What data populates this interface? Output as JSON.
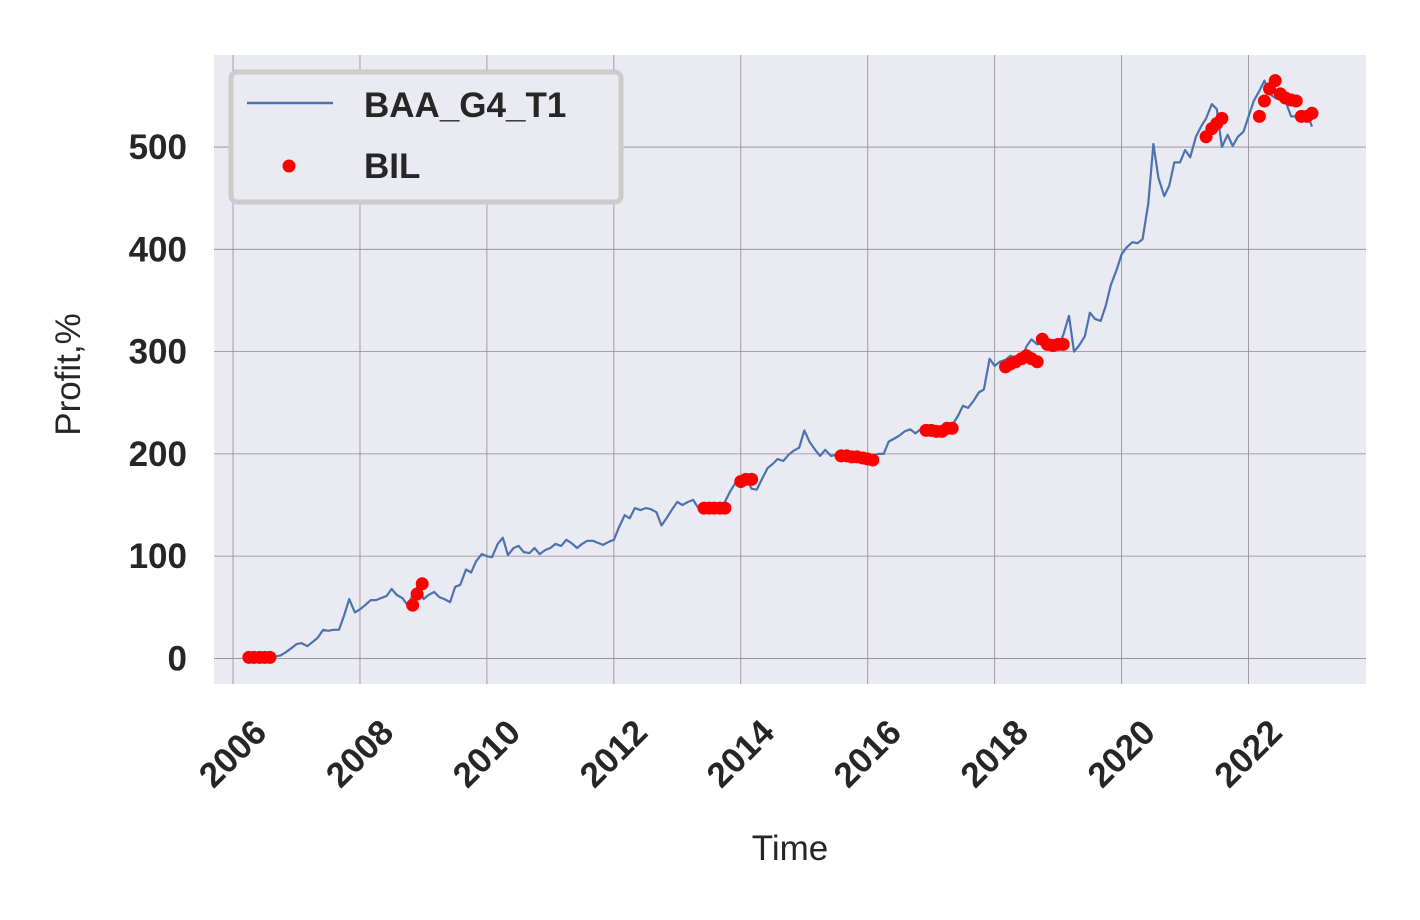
{
  "chart_data": {
    "type": "line",
    "title": "",
    "xlabel": "Time",
    "ylabel": "Profit,%",
    "xlim": [
      2005.7,
      2023.85
    ],
    "ylim": [
      -25,
      590
    ],
    "x_ticks": [
      2006,
      2008,
      2010,
      2012,
      2014,
      2016,
      2018,
      2020,
      2022
    ],
    "x_tick_labels": [
      "2006",
      "2008",
      "2010",
      "2012",
      "2014",
      "2016",
      "2018",
      "2020",
      "2022"
    ],
    "y_ticks": [
      0,
      100,
      200,
      300,
      400,
      500
    ],
    "y_tick_labels": [
      "0",
      "100",
      "200",
      "300",
      "400",
      "500"
    ],
    "grid": true,
    "legend": "top-left",
    "colors": {
      "line": "#4c72b0",
      "points": "#ff0000",
      "background": "#eaeaf2",
      "grid": "#8c8c8c"
    },
    "series": [
      {
        "name": "BAA_G4_T1",
        "kind": "line",
        "x": [
          2006.17,
          2006.25,
          2006.33,
          2006.42,
          2006.5,
          2006.58,
          2006.67,
          2006.75,
          2006.83,
          2006.92,
          2007.0,
          2007.08,
          2007.17,
          2007.25,
          2007.33,
          2007.42,
          2007.5,
          2007.58,
          2007.67,
          2007.75,
          2007.83,
          2007.92,
          2008.0,
          2008.08,
          2008.17,
          2008.25,
          2008.33,
          2008.42,
          2008.5,
          2008.58,
          2008.67,
          2008.75,
          2008.83,
          2008.92,
          2009.0,
          2009.08,
          2009.17,
          2009.25,
          2009.33,
          2009.42,
          2009.5,
          2009.58,
          2009.67,
          2009.75,
          2009.83,
          2009.92,
          2010.0,
          2010.08,
          2010.17,
          2010.25,
          2010.33,
          2010.42,
          2010.5,
          2010.58,
          2010.67,
          2010.75,
          2010.83,
          2010.92,
          2011.0,
          2011.08,
          2011.17,
          2011.25,
          2011.33,
          2011.42,
          2011.5,
          2011.58,
          2011.67,
          2011.75,
          2011.83,
          2011.92,
          2012.0,
          2012.08,
          2012.17,
          2012.25,
          2012.33,
          2012.42,
          2012.5,
          2012.58,
          2012.67,
          2012.75,
          2012.83,
          2012.92,
          2013.0,
          2013.08,
          2013.17,
          2013.25,
          2013.33,
          2013.42,
          2013.5,
          2013.58,
          2013.67,
          2013.75,
          2013.83,
          2013.92,
          2014.0,
          2014.08,
          2014.17,
          2014.25,
          2014.33,
          2014.42,
          2014.5,
          2014.58,
          2014.67,
          2014.75,
          2014.83,
          2014.92,
          2015.0,
          2015.08,
          2015.17,
          2015.25,
          2015.33,
          2015.42,
          2015.5,
          2015.58,
          2015.67,
          2015.75,
          2015.83,
          2015.92,
          2016.0,
          2016.08,
          2016.17,
          2016.25,
          2016.33,
          2016.42,
          2016.5,
          2016.58,
          2016.67,
          2016.75,
          2016.83,
          2016.92,
          2017.0,
          2017.08,
          2017.17,
          2017.25,
          2017.33,
          2017.42,
          2017.5,
          2017.58,
          2017.67,
          2017.75,
          2017.83,
          2017.92,
          2018.0,
          2018.08,
          2018.17,
          2018.25,
          2018.33,
          2018.42,
          2018.5,
          2018.58,
          2018.67,
          2018.75,
          2018.83,
          2018.92,
          2019.0,
          2019.08,
          2019.17,
          2019.25,
          2019.33,
          2019.42,
          2019.5,
          2019.58,
          2019.67,
          2019.75,
          2019.83,
          2019.92,
          2020.0,
          2020.08,
          2020.17,
          2020.25,
          2020.33,
          2020.42,
          2020.5,
          2020.58,
          2020.67,
          2020.75,
          2020.83,
          2020.92,
          2021.0,
          2021.08,
          2021.17,
          2021.25,
          2021.33,
          2021.42,
          2021.5,
          2021.58,
          2021.67,
          2021.75,
          2021.83,
          2021.92,
          2022.0,
          2022.08,
          2022.17,
          2022.25,
          2022.33,
          2022.42,
          2022.5,
          2022.58,
          2022.67,
          2022.75,
          2022.83,
          2022.92,
          2023.0
        ],
        "y": [
          0,
          2,
          1,
          1,
          1,
          1,
          2,
          3,
          6,
          10,
          14,
          15,
          12,
          16,
          20,
          28,
          27,
          28,
          28,
          42,
          58,
          45,
          48,
          52,
          57,
          57,
          59,
          61,
          68,
          62,
          59,
          52,
          62,
          72,
          58,
          62,
          65,
          60,
          58,
          55,
          70,
          72,
          87,
          84,
          95,
          102,
          100,
          99,
          112,
          118,
          101,
          108,
          110,
          104,
          103,
          108,
          102,
          106,
          108,
          112,
          110,
          116,
          113,
          108,
          112,
          115,
          115,
          113,
          111,
          114,
          116,
          128,
          140,
          137,
          147,
          145,
          147,
          146,
          143,
          130,
          137,
          146,
          153,
          150,
          153,
          155,
          147,
          147,
          147,
          147,
          147,
          153,
          163,
          172,
          175,
          176,
          166,
          165,
          175,
          186,
          190,
          195,
          193,
          199,
          203,
          206,
          223,
          212,
          204,
          198,
          204,
          198,
          199,
          199,
          197,
          197,
          197,
          195,
          199,
          199,
          200,
          200,
          212,
          215,
          218,
          222,
          224,
          220,
          224,
          223,
          223,
          226,
          225,
          230,
          228,
          237,
          247,
          245,
          252,
          260,
          263,
          293,
          286,
          290,
          292,
          296,
          293,
          291,
          305,
          312,
          307,
          309,
          308,
          307,
          305,
          316,
          335,
          300,
          306,
          315,
          338,
          332,
          330,
          345,
          365,
          380,
          395,
          402,
          407,
          406,
          410,
          445,
          503,
          470,
          452,
          462,
          485,
          485,
          497,
          490,
          510,
          520,
          528,
          542,
          537,
          500,
          512,
          501,
          510,
          515,
          530,
          545,
          555,
          565,
          552,
          548,
          546,
          545,
          530,
          530,
          528,
          533,
          520
        ]
      },
      {
        "name": "BIL",
        "kind": "scatter",
        "x": [
          2006.25,
          2006.33,
          2006.42,
          2006.5,
          2006.58,
          2008.83,
          2008.9,
          2008.98,
          2013.42,
          2013.5,
          2013.58,
          2013.67,
          2013.75,
          2014.0,
          2014.08,
          2014.17,
          2015.58,
          2015.67,
          2015.75,
          2015.83,
          2015.92,
          2016.0,
          2016.08,
          2016.92,
          2017.0,
          2017.08,
          2017.17,
          2017.25,
          2017.33,
          2018.17,
          2018.25,
          2018.33,
          2018.42,
          2018.5,
          2018.58,
          2018.67,
          2018.75,
          2018.83,
          2018.92,
          2019.0,
          2019.08,
          2021.33,
          2021.42,
          2021.5,
          2021.58,
          2022.17,
          2022.25,
          2022.33,
          2022.42,
          2022.5,
          2022.58,
          2022.67,
          2022.75,
          2022.83,
          2022.92,
          2023.0
        ],
        "y": [
          1,
          1,
          1,
          1,
          1,
          52,
          63,
          73,
          147,
          147,
          147,
          147,
          147,
          173,
          175,
          175,
          198,
          198,
          197,
          197,
          196,
          195,
          194,
          223,
          223,
          222,
          222,
          225,
          225,
          285,
          288,
          290,
          293,
          296,
          293,
          290,
          312,
          307,
          306,
          307,
          307,
          510,
          518,
          523,
          528,
          530,
          545,
          557,
          565,
          552,
          548,
          546,
          545,
          530,
          530,
          533
        ]
      }
    ]
  }
}
